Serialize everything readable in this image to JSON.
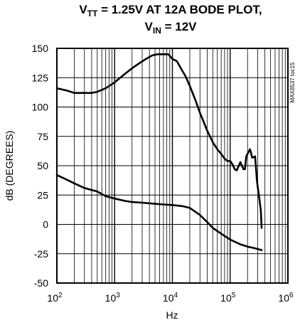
{
  "chart_data": {
    "type": "line",
    "title_line1": {
      "prefix": "V",
      "sub": "TT",
      "rest": " = 1.25V AT 12A BODE PLOT,"
    },
    "title_line2": {
      "prefix": "V",
      "sub": "IN",
      "rest": " = 12V"
    },
    "xlabel": "Hz",
    "ylabel": "dB (DEGREES)",
    "part_note": "MAX8537 toc15",
    "x_scale": "log",
    "xlim": [
      100,
      1000000
    ],
    "ylim": [
      -50,
      150
    ],
    "x_ticks": [
      {
        "base": "10",
        "exp": "2"
      },
      {
        "base": "10",
        "exp": "3"
      },
      {
        "base": "10",
        "exp": "4"
      },
      {
        "base": "10",
        "exp": "5"
      },
      {
        "base": "10",
        "exp": "6"
      }
    ],
    "y_ticks": [
      "-50",
      "-25",
      "0",
      "25",
      "50",
      "75",
      "100",
      "125",
      "150"
    ],
    "grid": true,
    "legend": "none",
    "series": [
      {
        "color": "#000000",
        "x": [
          100,
          150,
          200,
          300,
          400,
          500,
          700,
          1000,
          1400,
          2000,
          2800,
          3500,
          4500,
          5500,
          6500,
          7500,
          8500,
          10000,
          12000,
          14000,
          17000,
          20000,
          25000,
          30000,
          40000,
          50000,
          60000,
          70000,
          80000,
          90000,
          100000,
          110000,
          120000,
          130000,
          150000,
          170000,
          180000,
          190000,
          200000,
          220000,
          230000,
          240000,
          250000,
          270000,
          280000,
          290000,
          300000,
          320000,
          340000,
          350000
        ],
        "y": [
          116,
          114,
          112,
          112,
          112,
          113,
          116,
          121,
          127,
          133,
          138,
          141,
          144,
          145,
          145,
          145,
          145,
          141,
          139,
          133,
          126,
          118,
          106,
          95,
          80,
          70,
          64,
          60,
          56,
          54,
          54,
          51,
          47,
          46,
          53,
          47,
          47,
          58,
          60,
          64,
          61,
          57,
          57,
          58,
          48,
          38,
          32,
          22,
          12,
          -3
        ]
      },
      {
        "color": "#000000",
        "x": [
          100,
          150,
          200,
          300,
          500,
          700,
          1000,
          1500,
          2000,
          3000,
          5000,
          7000,
          10000,
          15000,
          20000,
          30000,
          40000,
          50000,
          70000,
          100000,
          150000,
          200000,
          250000,
          300000,
          350000
        ],
        "y": [
          42,
          38,
          35,
          31,
          28,
          24,
          22,
          20,
          19,
          18.5,
          17.5,
          17,
          16.5,
          15.5,
          14,
          8,
          2,
          -3,
          -8,
          -13,
          -17,
          -19,
          -20,
          -21,
          -22
        ]
      }
    ]
  }
}
